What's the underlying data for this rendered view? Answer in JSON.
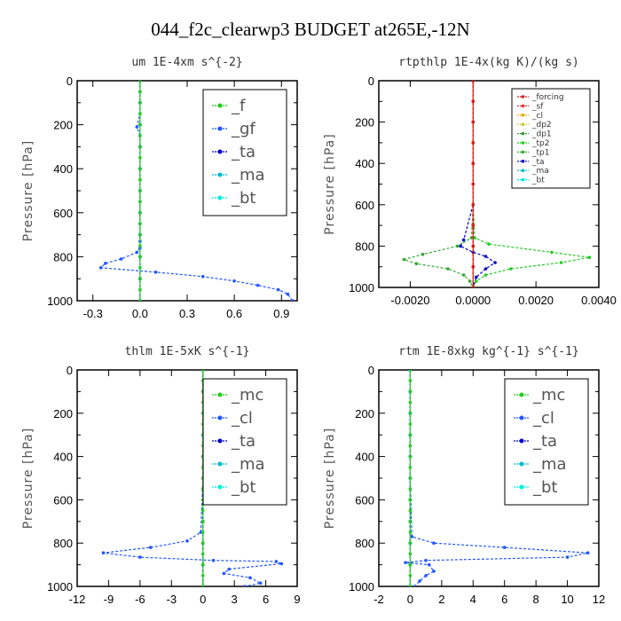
{
  "figure": {
    "title": "044_f2c_clearwp3  BUDGET at265E,-12N"
  },
  "chart_data": [
    {
      "type": "line",
      "title": "um   1E-4xm s^{-2}",
      "ylabel": "Pressure [hPa]",
      "xlim": [
        -0.4,
        1.0
      ],
      "ylim": [
        1000,
        0
      ],
      "xticks": [
        -0.3,
        0.0,
        0.3,
        0.6,
        0.9
      ],
      "xtick_labels": [
        "-0.3",
        "0.0",
        "0.3",
        "0.6",
        "0.9"
      ],
      "yticks": [
        0,
        200,
        400,
        600,
        800,
        1000
      ],
      "ytick_labels": [
        "0",
        "200",
        "400",
        "600",
        "800",
        "1000"
      ],
      "legend_size": "large",
      "legend_placement": "top-right",
      "series": [
        {
          "name": "_f",
          "color": "#22cc22",
          "x": [
            0,
            0,
            0,
            0,
            0,
            0,
            0,
            0,
            0,
            0,
            0,
            0,
            0,
            0,
            0,
            0,
            0,
            0,
            0,
            0,
            0
          ],
          "y": [
            0,
            50,
            100,
            150,
            200,
            250,
            300,
            350,
            400,
            450,
            500,
            550,
            600,
            650,
            700,
            750,
            800,
            850,
            900,
            950,
            1000
          ]
        },
        {
          "name": "_gf",
          "color": "#2255ff",
          "x": [
            0.0,
            0.0,
            0.0,
            0.0,
            -0.02,
            0.0,
            0.0,
            0.0,
            0.0,
            0.0,
            0.0,
            0.0,
            0.0,
            0.0,
            0.0,
            -0.02,
            -0.12,
            -0.22,
            -0.25,
            0.1,
            0.4,
            0.6,
            0.75,
            0.88,
            0.94,
            0.97
          ],
          "y": [
            0,
            50,
            100,
            150,
            210,
            250,
            300,
            400,
            500,
            550,
            600,
            650,
            700,
            730,
            760,
            780,
            810,
            830,
            850,
            870,
            890,
            910,
            930,
            950,
            970,
            1000
          ]
        },
        {
          "name": "_ta",
          "color": "#0000cc",
          "x": [
            0,
            0,
            0,
            0,
            0,
            0,
            0,
            0,
            0,
            0,
            0
          ],
          "y": [
            0,
            100,
            200,
            300,
            400,
            500,
            600,
            700,
            800,
            900,
            1000
          ]
        },
        {
          "name": "_ma",
          "color": "#00bbcc",
          "x": [
            0,
            0,
            0,
            0,
            0,
            0,
            0,
            0,
            0,
            0,
            0
          ],
          "y": [
            0,
            100,
            200,
            300,
            400,
            500,
            600,
            700,
            800,
            900,
            1000
          ]
        },
        {
          "name": "_bt",
          "color": "#00eedd",
          "x": [
            0,
            0,
            0,
            0,
            0,
            0,
            0,
            0,
            0,
            0,
            0
          ],
          "y": [
            0,
            100,
            200,
            300,
            400,
            500,
            600,
            700,
            800,
            900,
            1000
          ]
        }
      ]
    },
    {
      "type": "line",
      "title": "rtpthlp   1E-4x(kg K)/(kg s)",
      "ylabel": "Pressure [hPa]",
      "xlim": [
        -0.003,
        0.004
      ],
      "ylim": [
        1000,
        0
      ],
      "xticks": [
        -0.002,
        0.0,
        0.002,
        0.004
      ],
      "xtick_labels": [
        "-0.0020",
        "0.0000",
        "0.0020",
        "0.0040"
      ],
      "yticks": [
        0,
        200,
        400,
        600,
        800,
        1000
      ],
      "ytick_labels": [
        "0",
        "200",
        "400",
        "600",
        "800",
        "1000"
      ],
      "legend_size": "small",
      "legend_placement": "top-right",
      "series": [
        {
          "name": "_forcing",
          "color": "#cc2222",
          "x": [
            0,
            0,
            0,
            0,
            0,
            0,
            0,
            0,
            0,
            0,
            0
          ],
          "y": [
            0,
            100,
            200,
            300,
            400,
            500,
            600,
            700,
            800,
            900,
            1000
          ]
        },
        {
          "name": "_sf",
          "color": "#dd3333",
          "x": [
            0,
            0,
            0,
            0,
            0,
            0,
            0,
            0,
            0,
            0,
            0
          ],
          "y": [
            0,
            100,
            200,
            300,
            400,
            500,
            600,
            700,
            800,
            900,
            1000
          ]
        },
        {
          "name": "_cl",
          "color": "#ddaa00",
          "x": [
            0,
            0,
            0,
            0,
            0,
            0,
            0,
            0,
            0,
            0,
            0
          ],
          "y": [
            0,
            100,
            200,
            300,
            400,
            500,
            600,
            700,
            800,
            900,
            1000
          ]
        },
        {
          "name": "_dp2",
          "color": "#cccc33",
          "x": [
            0,
            0,
            0,
            0,
            0,
            0,
            0,
            0,
            0,
            0,
            0
          ],
          "y": [
            0,
            100,
            200,
            300,
            400,
            500,
            600,
            700,
            800,
            900,
            1000
          ]
        },
        {
          "name": "_dp1",
          "color": "#339933",
          "x": [
            0,
            0,
            0,
            0,
            0,
            0,
            0,
            0,
            0,
            0,
            0
          ],
          "y": [
            0,
            100,
            200,
            300,
            400,
            500,
            600,
            700,
            800,
            900,
            1000
          ]
        },
        {
          "name": "_tp2",
          "color": "#22cc22",
          "x": [
            0,
            0,
            0,
            5e-05,
            0.0005,
            0.0025,
            0.0037,
            0.0028,
            0.0012,
            0.0004,
            0.0001,
            0
          ],
          "y": [
            0,
            300,
            600,
            760,
            790,
            830,
            855,
            880,
            910,
            940,
            970,
            1000
          ]
        },
        {
          "name": "_tp1",
          "color": "#33aa33",
          "x": [
            0,
            0,
            0,
            -5e-05,
            -0.0005,
            -0.0016,
            -0.0022,
            -0.0018,
            -0.0008,
            -0.0003,
            -0.0001,
            0
          ],
          "y": [
            0,
            300,
            600,
            760,
            800,
            840,
            865,
            885,
            910,
            940,
            970,
            1000
          ]
        },
        {
          "name": "_ta",
          "color": "#0000cc",
          "x": [
            0,
            0,
            0,
            -0.0003,
            -0.0004,
            0,
            0.0004,
            0.0007,
            0.0004,
            0.0001,
            0
          ],
          "y": [
            0,
            300,
            600,
            770,
            800,
            830,
            850,
            880,
            910,
            950,
            1000
          ]
        },
        {
          "name": "_ma",
          "color": "#00bbcc",
          "x": [
            0,
            0,
            0,
            0,
            0,
            0,
            0,
            0,
            0,
            0,
            0
          ],
          "y": [
            0,
            100,
            200,
            300,
            400,
            500,
            600,
            700,
            800,
            900,
            1000
          ]
        },
        {
          "name": "_bt",
          "color": "#00eedd",
          "x": [
            0,
            0,
            0,
            0,
            0,
            0,
            0,
            0,
            0,
            0,
            0
          ],
          "y": [
            0,
            100,
            200,
            300,
            400,
            500,
            600,
            700,
            800,
            900,
            1000
          ]
        }
      ]
    },
    {
      "type": "line",
      "title": "thlm   1E-5xK s^{-1}",
      "ylabel": "Pressure [hPa]",
      "xlim": [
        -12,
        9
      ],
      "ylim": [
        1000,
        0
      ],
      "xticks": [
        -12,
        -9,
        -6,
        -3,
        0,
        3,
        6,
        9
      ],
      "xtick_labels": [
        "-12",
        "-9",
        "-6",
        "-3",
        "0",
        "3",
        "6",
        "9"
      ],
      "yticks": [
        0,
        200,
        400,
        600,
        800,
        1000
      ],
      "ytick_labels": [
        "0",
        "200",
        "400",
        "600",
        "800",
        "1000"
      ],
      "legend_size": "large",
      "legend_placement": "top-right",
      "series": [
        {
          "name": "_mc",
          "color": "#22cc22",
          "x": [
            0,
            0,
            0,
            0,
            0,
            0,
            0,
            0,
            0,
            0,
            0,
            0,
            0,
            0,
            0,
            0,
            0,
            0,
            0,
            0,
            0
          ],
          "y": [
            0,
            50,
            100,
            150,
            200,
            250,
            300,
            350,
            400,
            450,
            500,
            550,
            600,
            650,
            700,
            750,
            800,
            850,
            900,
            950,
            1000
          ]
        },
        {
          "name": "_cl",
          "color": "#2255ff",
          "x": [
            0,
            0,
            0,
            0,
            0,
            0,
            -0.2,
            -1.5,
            -5,
            -9.5,
            -6,
            1,
            7,
            7.5,
            2.5,
            2,
            4.5,
            5.5,
            4
          ],
          "y": [
            0,
            100,
            200,
            300,
            400,
            500,
            750,
            790,
            820,
            845,
            865,
            880,
            885,
            895,
            920,
            940,
            960,
            985,
            1000
          ]
        },
        {
          "name": "_ta",
          "color": "#0000cc",
          "x": [
            0,
            0,
            0,
            0,
            0,
            0,
            0,
            0,
            0,
            0,
            0
          ],
          "y": [
            0,
            100,
            200,
            300,
            400,
            500,
            600,
            700,
            800,
            900,
            1000
          ]
        },
        {
          "name": "_ma",
          "color": "#00bbcc",
          "x": [
            0,
            0,
            0,
            0,
            0,
            0,
            0,
            0,
            0,
            0,
            0
          ],
          "y": [
            0,
            100,
            200,
            300,
            400,
            500,
            600,
            700,
            800,
            900,
            1000
          ]
        },
        {
          "name": "_bt",
          "color": "#00eedd",
          "x": [
            0,
            0,
            0,
            0,
            0,
            0,
            0,
            0,
            0,
            0,
            0
          ],
          "y": [
            0,
            100,
            200,
            300,
            400,
            500,
            600,
            700,
            800,
            900,
            1000
          ]
        }
      ]
    },
    {
      "type": "line",
      "title": "rtm   1E-8xkg kg^{-1} s^{-1}",
      "ylabel": "Pressure [hPa]",
      "xlim": [
        -2,
        12
      ],
      "ylim": [
        1000,
        0
      ],
      "xticks": [
        -2,
        0,
        2,
        4,
        6,
        8,
        10,
        12
      ],
      "xtick_labels": [
        "-2",
        "0",
        "2",
        "4",
        "6",
        "8",
        "10",
        "12"
      ],
      "yticks": [
        0,
        200,
        400,
        600,
        800,
        1000
      ],
      "ytick_labels": [
        "0",
        "200",
        "400",
        "600",
        "800",
        "1000"
      ],
      "legend_size": "large",
      "legend_placement": "top-right",
      "series": [
        {
          "name": "_mc",
          "color": "#22cc22",
          "x": [
            0,
            0,
            0,
            0,
            0,
            0,
            0,
            0,
            0,
            0,
            0,
            0,
            0,
            0,
            0,
            0,
            0,
            0,
            0,
            0,
            0
          ],
          "y": [
            0,
            50,
            100,
            150,
            200,
            250,
            300,
            350,
            400,
            450,
            500,
            550,
            600,
            650,
            700,
            750,
            800,
            850,
            900,
            950,
            1000
          ]
        },
        {
          "name": "_cl",
          "color": "#2255ff",
          "x": [
            0,
            0,
            0,
            0,
            0,
            0,
            0.1,
            1.5,
            6,
            11.3,
            10,
            1,
            -0.3,
            1.2,
            1.5,
            1,
            0.6,
            0.3
          ],
          "y": [
            0,
            100,
            200,
            300,
            400,
            500,
            770,
            800,
            820,
            845,
            865,
            880,
            890,
            900,
            930,
            950,
            975,
            1000
          ]
        },
        {
          "name": "_ta",
          "color": "#0000cc",
          "x": [
            0,
            0,
            0,
            0,
            0,
            0,
            0,
            0,
            0,
            0,
            0
          ],
          "y": [
            0,
            100,
            200,
            300,
            400,
            500,
            600,
            700,
            800,
            900,
            1000
          ]
        },
        {
          "name": "_ma",
          "color": "#00bbcc",
          "x": [
            0,
            0,
            0,
            0,
            0,
            0,
            0,
            0,
            0,
            0,
            0
          ],
          "y": [
            0,
            100,
            200,
            300,
            400,
            500,
            600,
            700,
            800,
            900,
            1000
          ]
        },
        {
          "name": "_bt",
          "color": "#00eedd",
          "x": [
            0,
            0,
            0,
            0,
            0,
            0,
            0,
            0,
            0,
            0,
            0
          ],
          "y": [
            0,
            100,
            200,
            300,
            400,
            500,
            600,
            700,
            800,
            900,
            1000
          ]
        }
      ]
    }
  ]
}
